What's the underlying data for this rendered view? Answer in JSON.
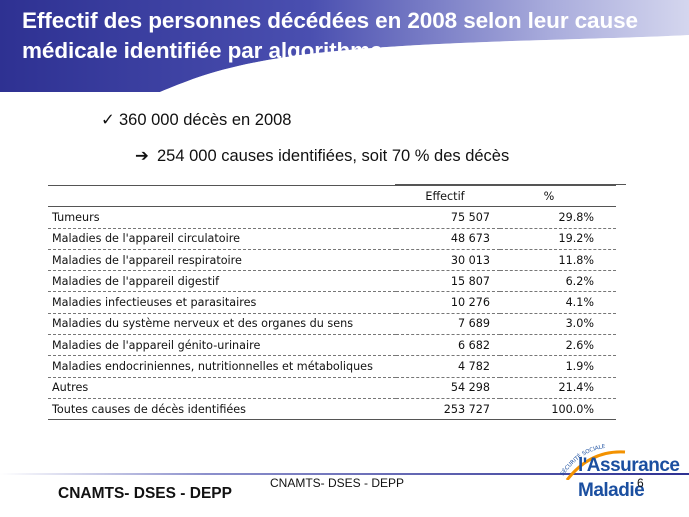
{
  "header": {
    "title": "Effectif des personnes décédées en 2008 selon leur cause médicale identifiée par algorithme"
  },
  "bullets": {
    "level1": "360 000 décès en 2008",
    "level2": "254 000 causes identifiées, soit 70 % des décès"
  },
  "table": {
    "headers": {
      "label": "",
      "effectif": "Effectif",
      "pct": "%"
    },
    "rows": [
      {
        "label": "Tumeurs",
        "effectif": "75 507",
        "pct": "29.8%"
      },
      {
        "label": "Maladies de l'appareil circulatoire",
        "effectif": "48 673",
        "pct": "19.2%"
      },
      {
        "label": "Maladies de l'appareil respiratoire",
        "effectif": "30 013",
        "pct": "11.8%"
      },
      {
        "label": "Maladies de l'appareil digestif",
        "effectif": "15 807",
        "pct": "6.2%"
      },
      {
        "label": "Maladies infectieuses et parasitaires",
        "effectif": "10 276",
        "pct": "4.1%"
      },
      {
        "label": "Maladies du système nerveux et des organes du sens",
        "effectif": "7 689",
        "pct": "3.0%"
      },
      {
        "label": "Maladies de l'appareil génito-urinaire",
        "effectif": "6 682",
        "pct": "2.6%"
      },
      {
        "label": "Maladies endocriniennes, nutritionnelles et métaboliques",
        "effectif": "4 782",
        "pct": "1.9%"
      },
      {
        "label": "Autres",
        "effectif": "54 298",
        "pct": "21.4%"
      },
      {
        "label": "Toutes causes de décès identifiées",
        "effectif": "253 727",
        "pct": "100.0%"
      }
    ]
  },
  "footer": {
    "left": "CNAMTS- DSES - DEPP",
    "center": "CNAMTS- DSES - DEPP",
    "page_number": "6",
    "logo_line1": "l'Assurance",
    "logo_line2": "Maladie",
    "logo_arc_text": "SÉCURITÉ SOCIALE"
  },
  "colors": {
    "header_dark": "#2e3192",
    "header_light": "#c9cbe8",
    "logo_blue": "#1b4fa0",
    "logo_orange": "#f39200"
  },
  "icons": {
    "bullet1": "check-icon",
    "bullet2": "arrow-right-icon"
  }
}
